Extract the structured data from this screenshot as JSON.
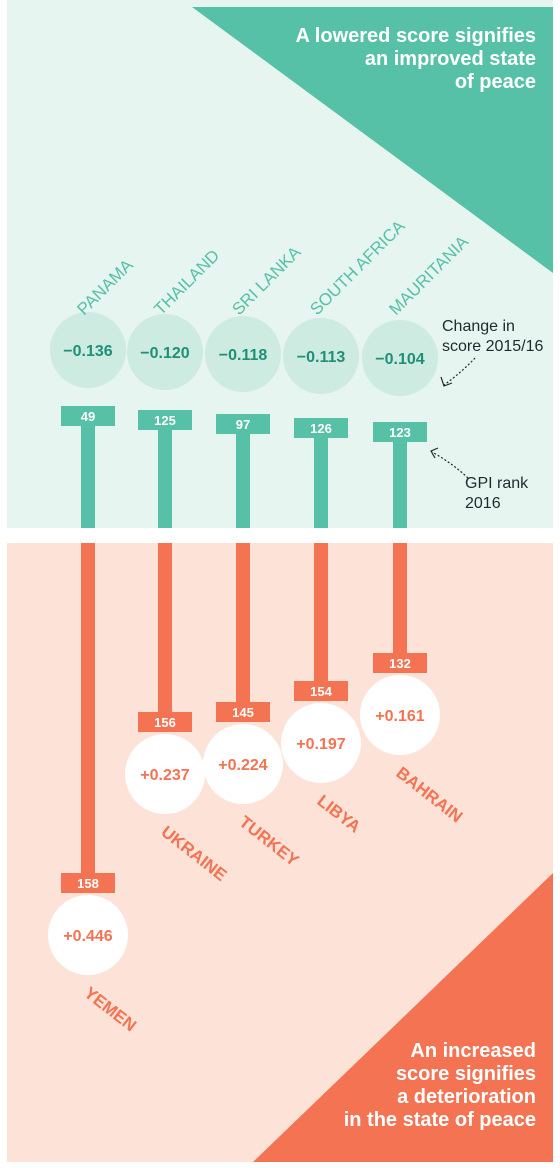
{
  "chart_data": {
    "type": "bar",
    "groups": [
      {
        "name": "improved",
        "countries": [
          "PANAMA",
          "THAILAND",
          "SRI LANKA",
          "SOUTH AFRICA",
          "MAURITANIA"
        ],
        "score_change_labels": [
          "−0.136",
          "−0.120",
          "−0.118",
          "−0.113",
          "−0.104"
        ],
        "score_change": [
          -0.136,
          -0.12,
          -0.118,
          -0.113,
          -0.104
        ],
        "gpi_rank": [
          49,
          125,
          97,
          126,
          123
        ]
      },
      {
        "name": "deteriorated",
        "countries": [
          "YEMEN",
          "UKRAINE",
          "TURKEY",
          "LIBYA",
          "BAHRAIN"
        ],
        "score_change_labels": [
          "+0.446",
          "+0.237",
          "+0.224",
          "+0.197",
          "+0.161"
        ],
        "score_change": [
          0.446,
          0.237,
          0.224,
          0.197,
          0.161
        ],
        "gpi_rank": [
          158,
          156,
          145,
          154,
          132
        ]
      }
    ],
    "annotations": {
      "change_label": "Change in\nscore 2015/16",
      "rank_label": "GPI rank\n2016"
    }
  },
  "headline_top": "A lowered score signifies\nan improved state\nof peace",
  "headline_bottom": "An increased\nscore signifies\na deterioration\nin the state of peace",
  "colors": {
    "teal": "#56c1a6",
    "teal_light": "#cdebe1",
    "teal_dark": "#1f8f78",
    "coral": "#f37352",
    "coral_text": "#f37352",
    "panel_top": "#e6f5f0",
    "panel_bottom": "#fde2d8"
  }
}
